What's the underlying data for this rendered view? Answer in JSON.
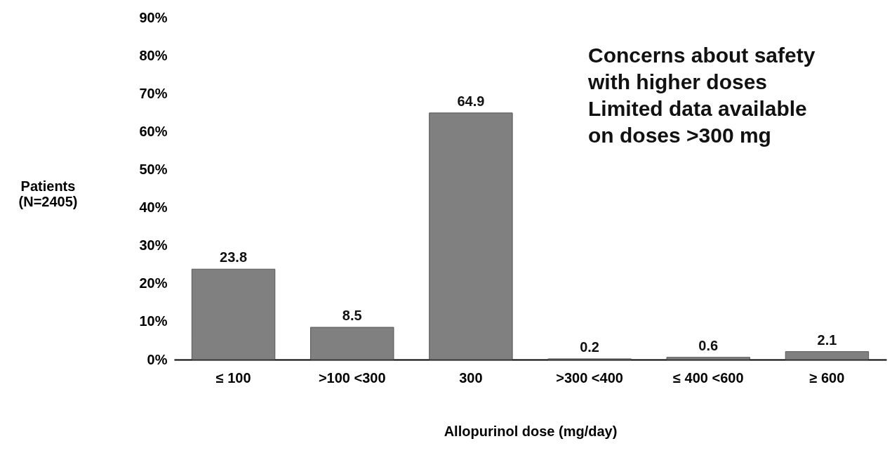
{
  "chart_data": {
    "type": "bar",
    "xlabel": "Allopurinol dose (mg/day)",
    "ylabel": "Patients\n(N=2405)",
    "categories": [
      "≤ 100",
      ">100 <300",
      "300",
      ">300 <400",
      "≤ 400 <600",
      "≥ 600"
    ],
    "values": [
      23.8,
      8.5,
      64.9,
      0.2,
      0.6,
      2.1
    ],
    "color": "#808080",
    "data_labels": true,
    "ylim": [
      0,
      90
    ],
    "yticks": [
      {
        "value": 0,
        "label": "0%"
      },
      {
        "value": 10,
        "label": "10%"
      },
      {
        "value": 20,
        "label": "20%"
      },
      {
        "value": 30,
        "label": "30%"
      },
      {
        "value": 40,
        "label": "40%"
      },
      {
        "value": 50,
        "label": "50%"
      },
      {
        "value": 60,
        "label": "60%"
      },
      {
        "value": 70,
        "label": "70%"
      },
      {
        "value": 80,
        "label": "80%"
      },
      {
        "value": 90,
        "label": "90%"
      }
    ],
    "grid": false,
    "annotations": [
      "Concerns about safety with higher doses",
      "Limited data available on doses >300 mg"
    ]
  }
}
